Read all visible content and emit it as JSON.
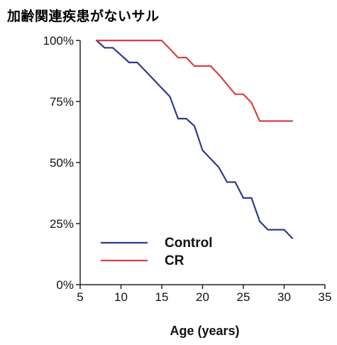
{
  "chart_data": {
    "type": "line",
    "title": "加齢関連疾患がないサル",
    "xlabel": "Age (years)",
    "ylabel": "",
    "xlim": [
      5,
      35
    ],
    "ylim": [
      0,
      100
    ],
    "x_ticks": [
      "5",
      "10",
      "15",
      "20",
      "25",
      "30",
      "35"
    ],
    "y_ticks": [
      "0%",
      "25%",
      "50%",
      "75%",
      "100%"
    ],
    "legend_position": "bottom-left",
    "grid": false,
    "series": [
      {
        "name": "Control",
        "color": "#2e3a8c",
        "x": [
          7,
          8,
          9,
          10,
          11,
          12,
          13,
          14,
          15,
          16,
          17,
          18,
          19,
          20,
          21,
          22,
          23,
          24,
          25,
          26,
          27,
          28,
          29,
          30,
          31
        ],
        "y": [
          100,
          97,
          97,
          94,
          91,
          91,
          87.5,
          84,
          80.5,
          77,
          68,
          68,
          65,
          55,
          51.5,
          48,
          42,
          42,
          35.5,
          35.5,
          26,
          22.5,
          22.5,
          22.5,
          19
        ]
      },
      {
        "name": "CR",
        "color": "#d94040",
        "x": [
          7,
          15,
          16,
          17,
          18,
          19,
          20,
          21,
          22,
          23,
          24,
          25,
          26,
          27,
          28,
          29,
          30,
          31
        ],
        "y": [
          100,
          100,
          96.5,
          93,
          93,
          89.5,
          89.5,
          89.5,
          86,
          82,
          78,
          78,
          74.5,
          67,
          67,
          67,
          67,
          67
        ]
      }
    ]
  }
}
